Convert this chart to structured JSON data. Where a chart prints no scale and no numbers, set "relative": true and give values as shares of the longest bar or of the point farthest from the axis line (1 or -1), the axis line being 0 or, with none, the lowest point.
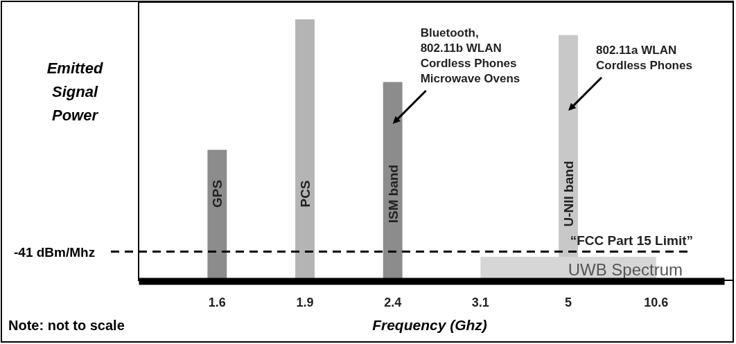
{
  "chart_data": {
    "type": "bar",
    "relative": true,
    "ylabel": "Emitted Signal Power",
    "xlabel": "Frequency (Ghz)",
    "categories": [
      "1.6",
      "1.9",
      "2.4",
      "3.1",
      "5",
      "10.6"
    ],
    "series": [
      {
        "name": "UWB Spectrum",
        "type": "area",
        "color": "#d6d6d6",
        "values": [
          null,
          null,
          null,
          0.09,
          0.09,
          0.09
        ]
      },
      {
        "name": "GPS",
        "color": "#8c8c8c",
        "values": [
          0.5,
          null,
          null,
          null,
          null,
          null
        ]
      },
      {
        "name": "PCS",
        "color": "#b4b4b4",
        "values": [
          null,
          1,
          null,
          null,
          null,
          null
        ]
      },
      {
        "name": "ISM band",
        "color": "#8c8c8c",
        "values": [
          null,
          null,
          0.76,
          null,
          null,
          null
        ]
      },
      {
        "name": "U-NII band",
        "color": "#c8c8c8",
        "values": [
          null,
          null,
          null,
          null,
          0.94,
          null
        ]
      }
    ],
    "ref_lines": [
      {
        "axis": "y",
        "value": 0.11,
        "label": "“FCC Part 15 Limit”",
        "line_style": "dashed"
      }
    ],
    "annotations": [
      "Bluetooth,\n802.11b WLAN\nCordless Phones\nMicrowave Ovens",
      "802.11a WLAN\nCordless Phones",
      "-41 dBm/Mhz",
      "Note: not to scale"
    ]
  }
}
